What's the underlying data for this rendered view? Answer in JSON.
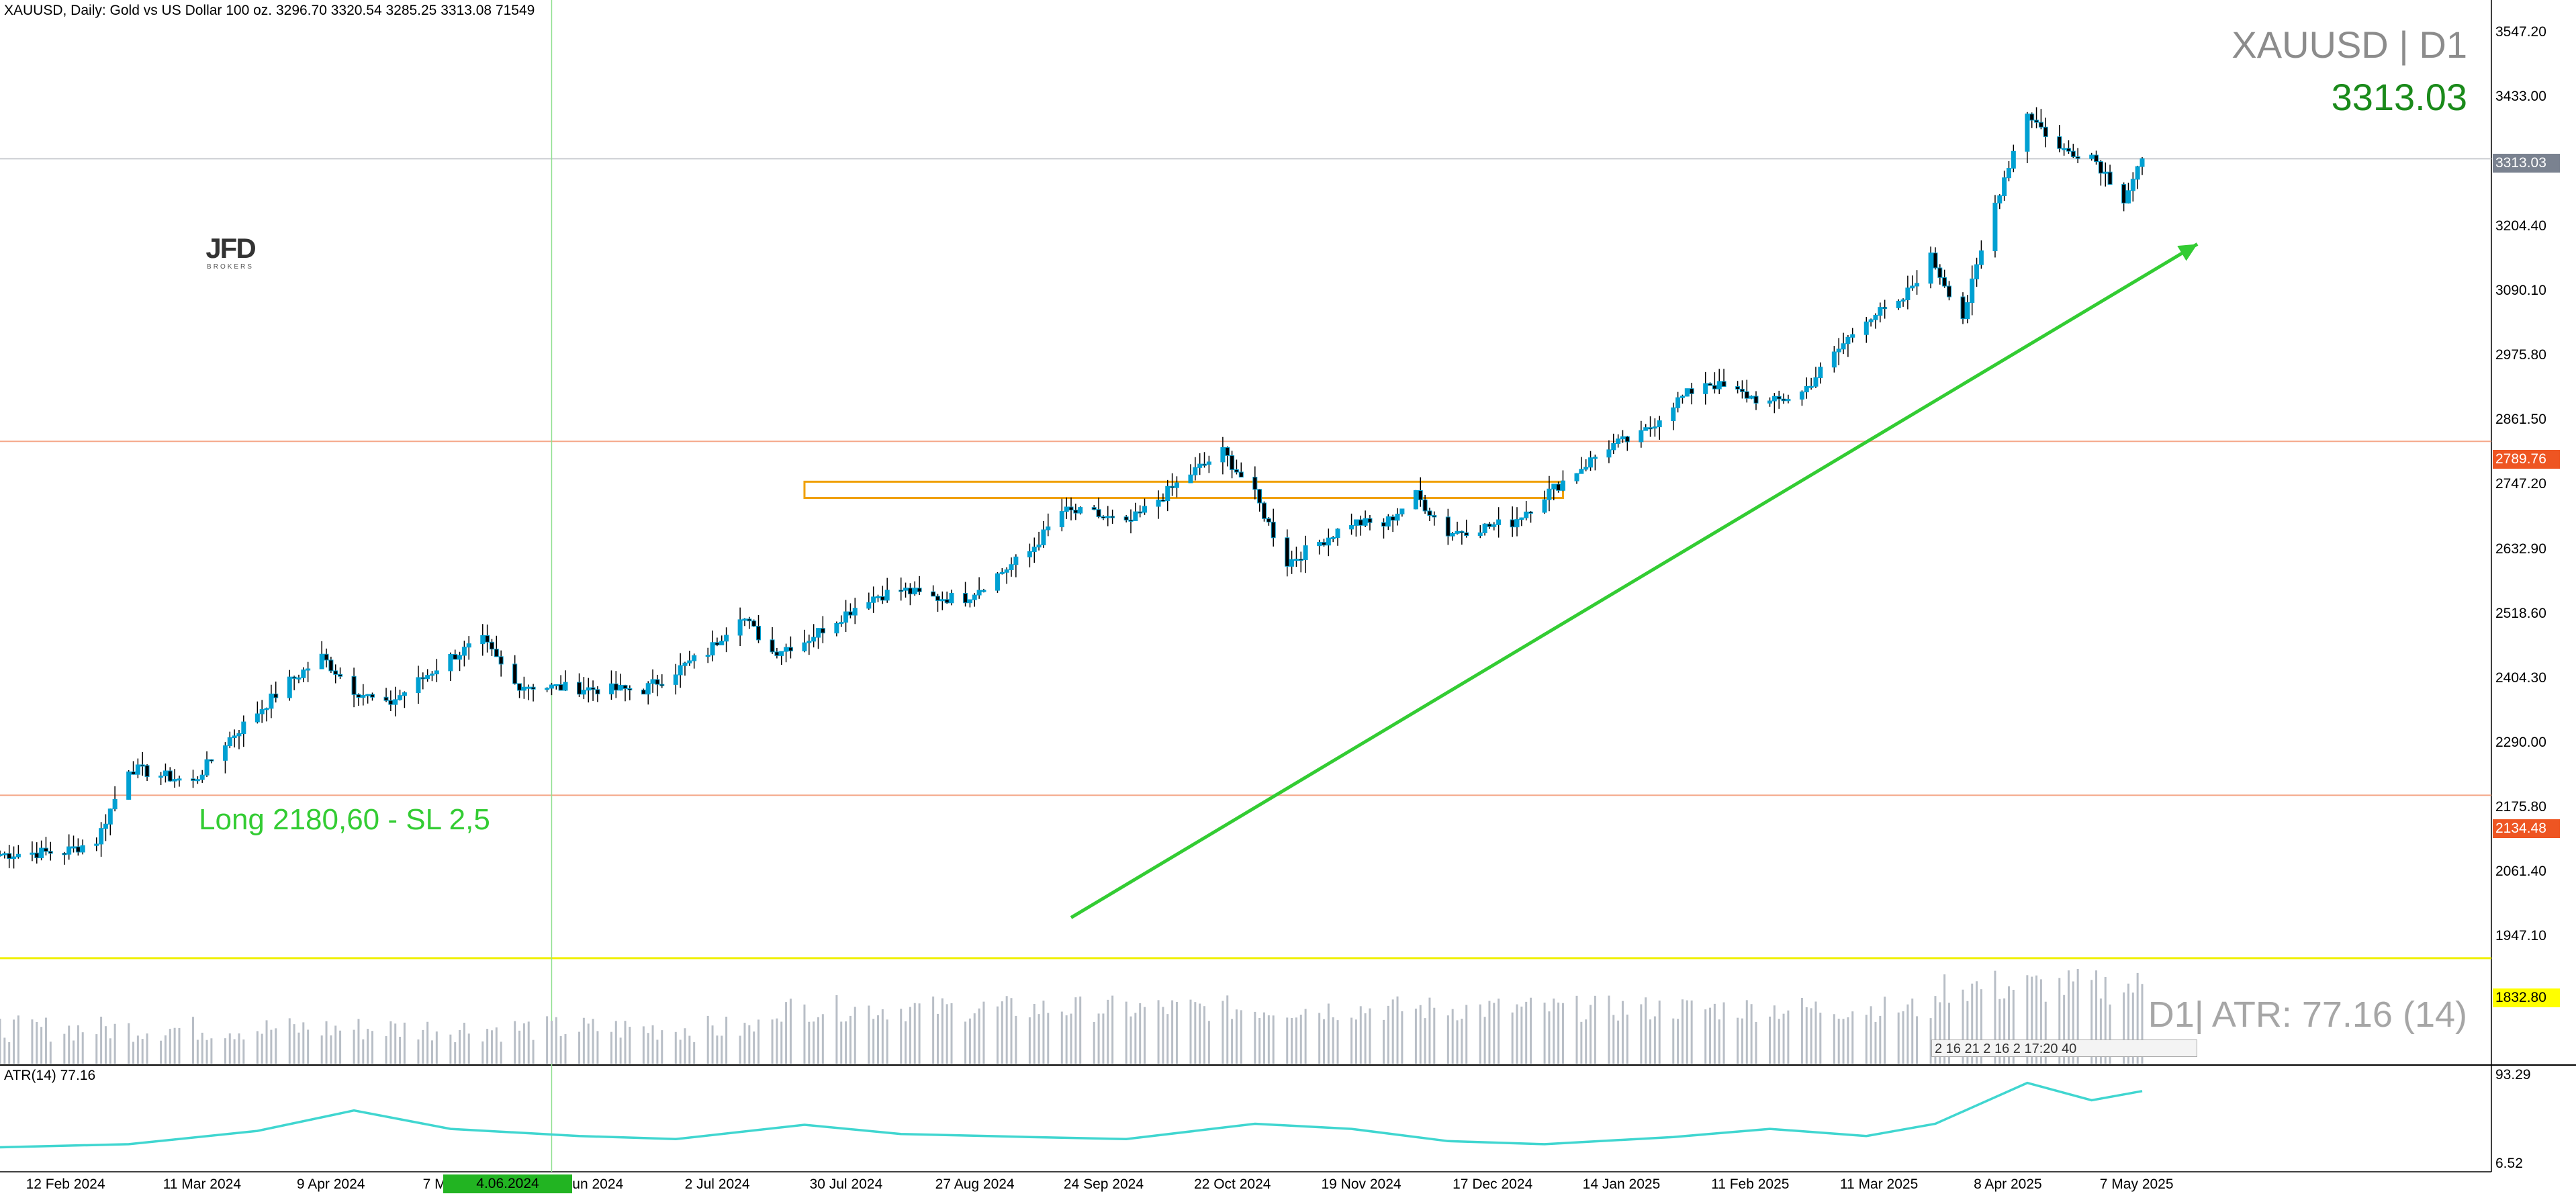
{
  "header": {
    "title": "XAUUSD, Daily:  Gold vs US Dollar 100 oz.  3296.70 3320.54 3285.25 3313.08  71549"
  },
  "watermark": {
    "symbol": "XAUUSD | D1",
    "price": "3313.03"
  },
  "logo": {
    "line1": "JFD",
    "line2": "BROKERS"
  },
  "trade_note": "Long 2180,60 - SL 2,5",
  "atr": {
    "label": "ATR(14) 77.16",
    "watermark": "D1| ATR: 77.16 (14)"
  },
  "price_axis": {
    "ticks": [
      "3547.20",
      "3433.00",
      "3204.40",
      "3090.10",
      "2975.80",
      "2861.50",
      "2747.20",
      "2632.90",
      "2518.60",
      "2404.30",
      "2290.00",
      "2175.80",
      "2061.40",
      "1947.10"
    ],
    "badges": [
      {
        "text": "3313.03",
        "color": "#7a8290"
      },
      {
        "text": "2789.76",
        "color": "#ee5522"
      },
      {
        "text": "2134.48",
        "color": "#ee5522"
      },
      {
        "text": "1832.80",
        "color": "#000000"
      }
    ]
  },
  "atr_axis": {
    "ticks": [
      "93.29",
      "6.52"
    ]
  },
  "time_axis": {
    "ticks": [
      "12 Feb 2024",
      "11 Mar 2024",
      "9 Apr 2024",
      "7 May 2024",
      "4 Jun 2024",
      "2 Jul 2024",
      "30 Jul 2024",
      "27 Aug 2024",
      "24 Sep 2024",
      "22 Oct 2024",
      "19 Nov 2024",
      "17 Dec 2024",
      "14 Jan 2025",
      "11 Feb 2025",
      "11 Mar 2025",
      "8 Apr 2025",
      "7 May 2025"
    ],
    "cursor_date": "4.06.2024"
  },
  "volume_strip_text": "2 16 21  2 16 2 17:20 40",
  "colors": {
    "candle": "#00a0d2",
    "trend_arrow": "#33cc33",
    "zone": "#f0a000",
    "resistance_line": "#f5a88a",
    "atr_line": "#40d6d0",
    "volume": "#b8bec6",
    "cursor_line": "#8fe08f",
    "last_price_line": "#c9ccd1"
  },
  "chart_data": [
    {
      "type": "candlestick",
      "title": "XAUUSD, Daily:  Gold vs US Dollar 100 oz.",
      "timeframe": "D1",
      "ohlc_last": {
        "open": 3296.7,
        "high": 3320.54,
        "low": 3285.25,
        "close": 3313.08,
        "volume": 71549
      },
      "ylim": [
        1900,
        3600
      ],
      "x_range": [
        "2024-02-05",
        "2025-05-16"
      ],
      "closes": [
        {
          "date": "2024-02-05",
          "close": 2025
        },
        {
          "date": "2024-02-19",
          "close": 2030
        },
        {
          "date": "2024-02-26",
          "close": 2050
        },
        {
          "date": "2024-03-04",
          "close": 2185
        },
        {
          "date": "2024-03-18",
          "close": 2158
        },
        {
          "date": "2024-03-25",
          "close": 2232
        },
        {
          "date": "2024-04-08",
          "close": 2345
        },
        {
          "date": "2024-04-15",
          "close": 2390
        },
        {
          "date": "2024-04-22",
          "close": 2330
        },
        {
          "date": "2024-04-29",
          "close": 2300
        },
        {
          "date": "2024-05-13",
          "close": 2390
        },
        {
          "date": "2024-05-20",
          "close": 2420
        },
        {
          "date": "2024-05-27",
          "close": 2340
        },
        {
          "date": "2024-06-03",
          "close": 2335
        },
        {
          "date": "2024-06-17",
          "close": 2330
        },
        {
          "date": "2024-06-24",
          "close": 2330
        },
        {
          "date": "2024-07-08",
          "close": 2400
        },
        {
          "date": "2024-07-15",
          "close": 2470
        },
        {
          "date": "2024-07-22",
          "close": 2400
        },
        {
          "date": "2024-07-29",
          "close": 2420
        },
        {
          "date": "2024-08-12",
          "close": 2500
        },
        {
          "date": "2024-08-19",
          "close": 2515
        },
        {
          "date": "2024-08-26",
          "close": 2500
        },
        {
          "date": "2024-09-02",
          "close": 2500
        },
        {
          "date": "2024-09-16",
          "close": 2585
        },
        {
          "date": "2024-09-23",
          "close": 2660
        },
        {
          "date": "2024-09-30",
          "close": 2655
        },
        {
          "date": "2024-10-07",
          "close": 2635
        },
        {
          "date": "2024-10-21",
          "close": 2730
        },
        {
          "date": "2024-10-28",
          "close": 2770
        },
        {
          "date": "2024-11-04",
          "close": 2690
        },
        {
          "date": "2024-11-11",
          "close": 2565
        },
        {
          "date": "2024-11-25",
          "close": 2640
        },
        {
          "date": "2024-12-02",
          "close": 2635
        },
        {
          "date": "2024-12-09",
          "close": 2690
        },
        {
          "date": "2024-12-16",
          "close": 2620
        },
        {
          "date": "2024-12-30",
          "close": 2640
        },
        {
          "date": "2025-01-06",
          "close": 2690
        },
        {
          "date": "2025-01-20",
          "close": 2780
        },
        {
          "date": "2025-01-27",
          "close": 2800
        },
        {
          "date": "2025-02-03",
          "close": 2860
        },
        {
          "date": "2025-02-10",
          "close": 2900
        },
        {
          "date": "2025-02-24",
          "close": 2860
        },
        {
          "date": "2025-03-03",
          "close": 2880
        },
        {
          "date": "2025-03-17",
          "close": 3020
        },
        {
          "date": "2025-03-24",
          "close": 3040
        },
        {
          "date": "2025-03-31",
          "close": 3130
        },
        {
          "date": "2025-04-07",
          "close": 3020
        },
        {
          "date": "2025-04-14",
          "close": 3230
        },
        {
          "date": "2025-04-21",
          "close": 3400
        },
        {
          "date": "2025-04-28",
          "close": 3330
        },
        {
          "date": "2025-05-05",
          "close": 3320
        },
        {
          "date": "2025-05-12",
          "close": 3240
        },
        {
          "date": "2025-05-16",
          "close": 3313
        }
      ],
      "horizontal_lines": [
        3313.03,
        2789.76,
        2134.48,
        1832.8
      ],
      "resistance_zone": {
        "from_date": "2024-07-29",
        "to_date": "2025-01-10",
        "low": 2685,
        "high": 2715
      },
      "trend_arrow": {
        "from": {
          "date": "2024-09-25",
          "price": 1908
        },
        "to": {
          "date": "2025-05-28",
          "price": 3155
        }
      }
    },
    {
      "type": "line",
      "title": "ATR(14)",
      "last_value": 77.16,
      "ylim": [
        6.52,
        93.29
      ],
      "points": [
        {
          "date": "2024-02-05",
          "value": 22
        },
        {
          "date": "2024-03-04",
          "value": 25
        },
        {
          "date": "2024-04-01",
          "value": 38
        },
        {
          "date": "2024-04-22",
          "value": 58
        },
        {
          "date": "2024-05-13",
          "value": 40
        },
        {
          "date": "2024-06-10",
          "value": 33
        },
        {
          "date": "2024-07-01",
          "value": 30
        },
        {
          "date": "2024-07-29",
          "value": 44
        },
        {
          "date": "2024-08-19",
          "value": 35
        },
        {
          "date": "2024-09-16",
          "value": 32
        },
        {
          "date": "2024-10-07",
          "value": 30
        },
        {
          "date": "2024-11-04",
          "value": 45
        },
        {
          "date": "2024-11-25",
          "value": 40
        },
        {
          "date": "2024-12-16",
          "value": 28
        },
        {
          "date": "2025-01-06",
          "value": 25
        },
        {
          "date": "2025-02-03",
          "value": 32
        },
        {
          "date": "2025-02-24",
          "value": 40
        },
        {
          "date": "2025-03-17",
          "value": 33
        },
        {
          "date": "2025-04-01",
          "value": 45
        },
        {
          "date": "2025-04-21",
          "value": 85
        },
        {
          "date": "2025-05-05",
          "value": 68
        },
        {
          "date": "2025-05-16",
          "value": 77
        }
      ]
    }
  ]
}
